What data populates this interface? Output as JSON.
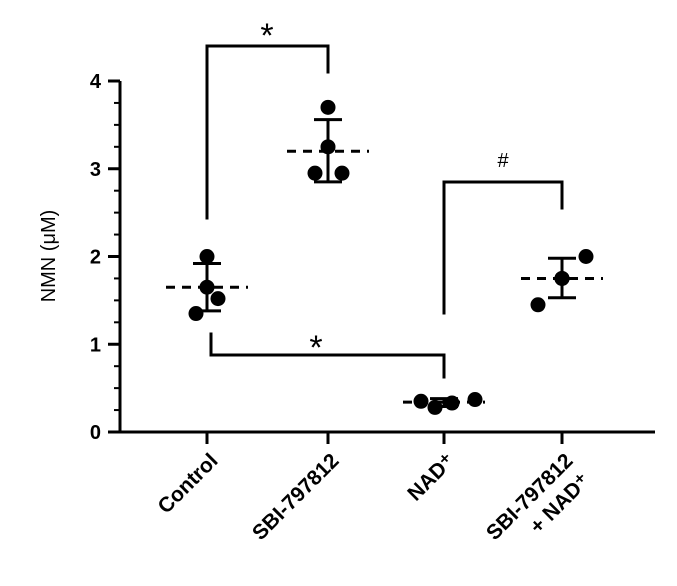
{
  "chart_data": {
    "type": "scatter",
    "ylabel": "NMN (μM)",
    "ylim": [
      0,
      4
    ],
    "yticks": [
      0,
      1,
      2,
      3,
      4
    ],
    "grid": false,
    "categories": [
      "Control",
      "SBI-797812",
      "NAD⁺",
      "SBI-797812 + NAD⁺"
    ],
    "category_lines": [
      [
        "Control"
      ],
      [
        "SBI-797812"
      ],
      [
        "NAD⁺"
      ],
      [
        "SBI-797812",
        "+ NAD⁺"
      ]
    ],
    "groups": [
      {
        "category": "Control",
        "points": [
          2.0,
          1.65,
          1.52,
          1.35
        ],
        "mean": 1.65,
        "sd_upper": 1.92,
        "sd_lower": 1.38
      },
      {
        "category": "SBI-797812",
        "points": [
          3.7,
          3.25,
          2.95,
          2.95
        ],
        "mean": 3.2,
        "sd_upper": 3.56,
        "sd_lower": 2.85
      },
      {
        "category": "NAD⁺",
        "points": [
          0.35,
          0.28,
          0.33,
          0.37
        ],
        "mean": 0.34,
        "sd_upper": 0.38,
        "sd_lower": 0.29
      },
      {
        "category": "SBI-797812 + NAD⁺",
        "points": [
          2.0,
          1.75,
          1.75,
          1.45
        ],
        "mean": 1.75,
        "sd_upper": 1.98,
        "sd_lower": 1.53
      }
    ],
    "annotations": [
      {
        "label": "*",
        "from": "Control",
        "to": "SBI-797812"
      },
      {
        "label": "*",
        "from": "Control",
        "to": "NAD⁺"
      },
      {
        "label": "#",
        "from": "NAD⁺",
        "to": "SBI-797812 + NAD⁺"
      }
    ]
  }
}
